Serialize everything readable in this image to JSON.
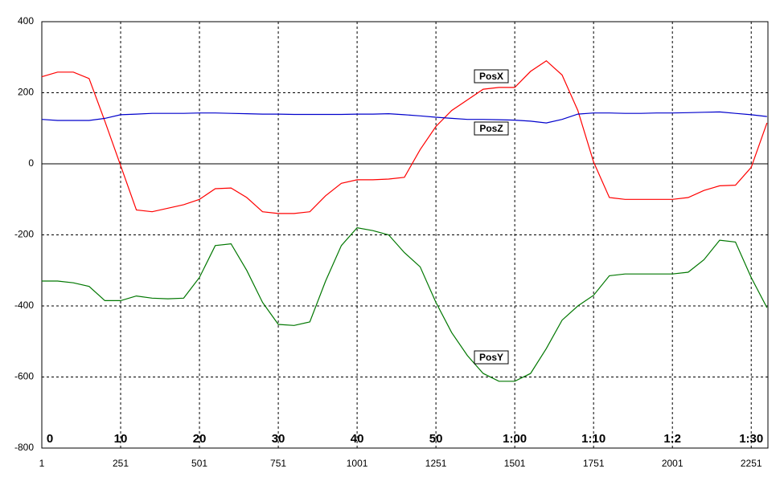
{
  "chart_data": {
    "type": "line",
    "x": [
      1,
      51,
      101,
      151,
      201,
      251,
      301,
      351,
      401,
      451,
      501,
      551,
      601,
      651,
      701,
      751,
      801,
      851,
      901,
      951,
      1001,
      1051,
      1101,
      1151,
      1201,
      1251,
      1301,
      1351,
      1401,
      1451,
      1501,
      1551,
      1601,
      1651,
      1701,
      1751,
      1801,
      1851,
      1901,
      1951,
      2001,
      2051,
      2101,
      2151,
      2201,
      2251,
      2301
    ],
    "series": [
      {
        "name": "PosX",
        "color": "#ff0000",
        "values": [
          245,
          258,
          258,
          240,
          120,
          -5,
          -130,
          -135,
          -125,
          -115,
          -100,
          -70,
          -68,
          -95,
          -135,
          -140,
          -140,
          -135,
          -90,
          -55,
          -45,
          -45,
          -43,
          -38,
          40,
          105,
          150,
          180,
          210,
          215,
          215,
          260,
          290,
          250,
          150,
          5,
          -95,
          -100,
          -100,
          -100,
          -100,
          -95,
          -75,
          -62,
          -60,
          -10,
          115
        ]
      },
      {
        "name": "PosZ",
        "color": "#0000cc",
        "values": [
          125,
          122,
          122,
          122,
          128,
          138,
          140,
          142,
          142,
          142,
          143,
          143,
          142,
          141,
          140,
          140,
          139,
          139,
          139,
          139,
          140,
          140,
          141,
          138,
          135,
          131,
          128,
          125,
          125,
          124,
          123,
          120,
          115,
          125,
          140,
          143,
          143,
          142,
          142,
          143,
          143,
          144,
          145,
          146,
          142,
          138,
          133
        ]
      },
      {
        "name": "PosY",
        "color": "#007700",
        "values": [
          -330,
          -330,
          -335,
          -345,
          -385,
          -385,
          -372,
          -378,
          -380,
          -378,
          -320,
          -230,
          -225,
          -300,
          -390,
          -452,
          -455,
          -445,
          -330,
          -230,
          -180,
          -188,
          -200,
          -250,
          -290,
          -390,
          -475,
          -540,
          -590,
          -612,
          -612,
          -590,
          -520,
          -440,
          -400,
          -370,
          -315,
          -310,
          -310,
          -310,
          -310,
          -305,
          -270,
          -215,
          -220,
          -320,
          -405
        ]
      }
    ],
    "xlim": [
      1,
      2304
    ],
    "xticks": [
      1,
      251,
      501,
      751,
      1001,
      1251,
      1501,
      1751,
      2001,
      2251
    ],
    "ylim": [
      -800,
      400
    ],
    "yticks": [
      -800,
      -600,
      -400,
      -200,
      0,
      200,
      400
    ],
    "time_labels": [
      "0",
      "10",
      "20",
      "30",
      "40",
      "50",
      "1:00",
      "1:10",
      "1:2",
      "1:30"
    ],
    "grid": true
  }
}
